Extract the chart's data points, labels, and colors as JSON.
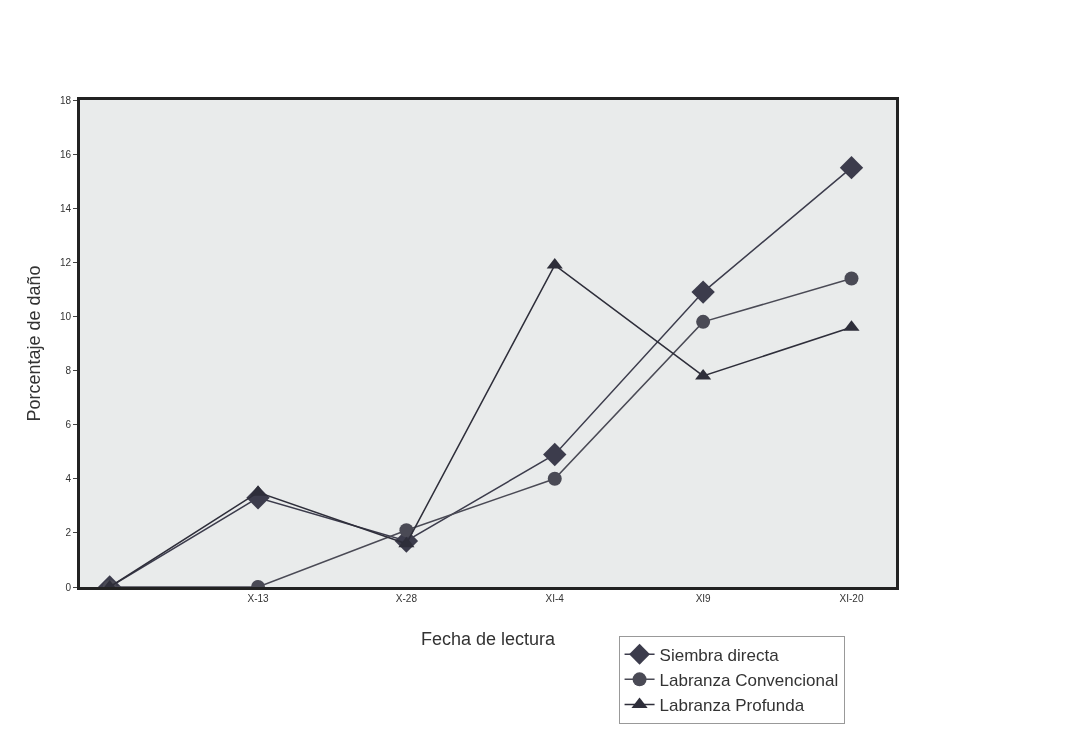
{
  "chart_data": {
    "type": "line",
    "xlabel": "Fecha de lectura",
    "ylabel": "Porcentaje de daño",
    "categories": [
      null,
      "X-13",
      "X-28",
      "XI-4",
      "XI9",
      "XI-20"
    ],
    "series": [
      {
        "name": "Siembra directa",
        "color": "#3c3c4c",
        "marker": "diamond",
        "values": [
          0,
          3.3,
          1.7,
          4.9,
          10.9,
          15.5
        ]
      },
      {
        "name": "Labranza Convencional",
        "color": "#4a4a55",
        "marker": "circle",
        "values": [
          0,
          0,
          2.1,
          4.0,
          9.8,
          11.4
        ]
      },
      {
        "name": "Labranza Profunda",
        "color": "#2e2e3a",
        "marker": "triangle",
        "values": [
          0,
          3.5,
          1.6,
          11.9,
          7.8,
          9.6
        ]
      }
    ],
    "ylim": [
      0,
      18
    ],
    "yticks": [
      0,
      2,
      4,
      6,
      8,
      10,
      12,
      14,
      16,
      18
    ],
    "grid": false,
    "legend": "bottom",
    "line_style": "solid"
  }
}
